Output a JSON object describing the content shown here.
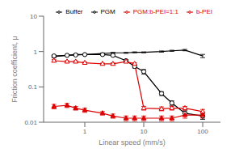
{
  "chart_data": {
    "type": "line",
    "title": "",
    "xlabel": "Linear speed (mm/s)",
    "ylabel": "Friction coefficient, μ",
    "log": true,
    "xlim": [
      0.2,
      200
    ],
    "ylim": [
      0.01,
      10
    ],
    "xticks": [
      1,
      10,
      100
    ],
    "yticks": [
      0.01,
      0.1,
      1,
      10
    ],
    "grid": false,
    "legend": "upper right",
    "x": [
      0.3,
      0.5,
      0.7,
      1.0,
      2.0,
      3.0,
      5.0,
      7.0,
      10.0,
      20.0,
      30.0,
      50.0,
      100.0
    ],
    "series": [
      {
        "name": "Buffer",
        "color": "#000000",
        "marker": "none",
        "line_style": "solid",
        "values": [
          0.72,
          0.78,
          0.82,
          0.82,
          0.88,
          0.92,
          0.92,
          0.95,
          0.95,
          1.0,
          1.05,
          1.1,
          0.75
        ],
        "yerr": [
          0.05,
          0.04,
          0.04,
          0.03,
          0.03,
          0.03,
          0.03,
          0.03,
          0.03,
          0.04,
          0.04,
          0.05,
          0.08
        ]
      },
      {
        "name": "PGM",
        "color": "#000000",
        "marker": "circle_open",
        "line_style": "solid",
        "values": [
          0.75,
          0.78,
          0.8,
          0.82,
          0.82,
          0.78,
          0.55,
          0.38,
          0.27,
          0.065,
          0.035,
          0.018,
          0.015
        ],
        "yerr": [
          0.04,
          0.03,
          0.03,
          0.03,
          0.03,
          0.04,
          0.04,
          0.04,
          0.04,
          0.008,
          0.005,
          0.003,
          0.003
        ]
      },
      {
        "name": "b-PEI",
        "color": "#dd0000",
        "marker": "triangle_open",
        "line_style": "solid",
        "values": [
          0.55,
          0.52,
          0.52,
          0.48,
          0.45,
          0.45,
          0.52,
          0.45,
          0.025,
          0.024,
          0.025,
          0.025,
          0.02
        ],
        "yerr": [
          0.04,
          0.03,
          0.03,
          0.03,
          0.02,
          0.03,
          0.04,
          0.03,
          0.003,
          0.003,
          0.003,
          0.003,
          0.003
        ]
      },
      {
        "name": "PGM:b-PEI=1:1",
        "color": "#dd0000",
        "marker": "triangle",
        "line_style": "solid",
        "values": [
          0.028,
          0.03,
          0.025,
          0.022,
          0.018,
          0.015,
          0.013,
          0.013,
          0.013,
          0.013,
          0.013,
          0.016,
          0.016
        ],
        "yerr": [
          0.004,
          0.004,
          0.003,
          0.003,
          0.002,
          0.002,
          0.002,
          0.002,
          0.002,
          0.002,
          0.002,
          0.003,
          0.003
        ]
      }
    ]
  }
}
